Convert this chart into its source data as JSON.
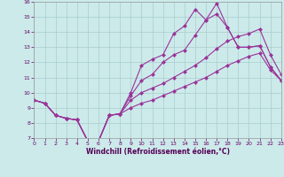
{
  "xlabel": "Windchill (Refroidissement éolien,°C)",
  "bg_color": "#cceaea",
  "line_color": "#993399",
  "grid_color": "#aacccc",
  "x_min": 0,
  "x_max": 23,
  "y_min": 7,
  "y_max": 16,
  "x": [
    0,
    1,
    2,
    3,
    4,
    5,
    6,
    7,
    8,
    9,
    10,
    11,
    12,
    13,
    14,
    15,
    16,
    17,
    18,
    19,
    20,
    21,
    22,
    23
  ],
  "line1_y": [
    9.5,
    9.3,
    8.5,
    8.3,
    8.2,
    6.8,
    6.8,
    8.5,
    8.6,
    10.0,
    11.8,
    12.2,
    12.5,
    13.9,
    14.4,
    15.5,
    14.8,
    15.9,
    14.3,
    13.0,
    13.0,
    13.1,
    11.7,
    10.8
  ],
  "line2_y": [
    9.5,
    9.3,
    8.5,
    8.3,
    8.2,
    6.8,
    6.8,
    8.5,
    8.6,
    9.8,
    10.8,
    11.2,
    12.0,
    12.5,
    12.8,
    13.8,
    14.8,
    15.2,
    14.3,
    13.0,
    13.0,
    13.1,
    11.7,
    10.8
  ],
  "line3_y": [
    9.5,
    9.3,
    8.5,
    8.3,
    8.2,
    6.8,
    6.8,
    8.5,
    8.6,
    9.5,
    10.0,
    10.3,
    10.6,
    11.0,
    11.4,
    11.8,
    12.3,
    12.9,
    13.4,
    13.7,
    13.9,
    14.2,
    12.5,
    11.2
  ],
  "line4_y": [
    9.5,
    9.3,
    8.5,
    8.3,
    8.2,
    6.8,
    6.8,
    8.5,
    8.6,
    9.0,
    9.3,
    9.5,
    9.8,
    10.1,
    10.4,
    10.7,
    11.0,
    11.4,
    11.8,
    12.1,
    12.4,
    12.6,
    11.5,
    10.8
  ]
}
